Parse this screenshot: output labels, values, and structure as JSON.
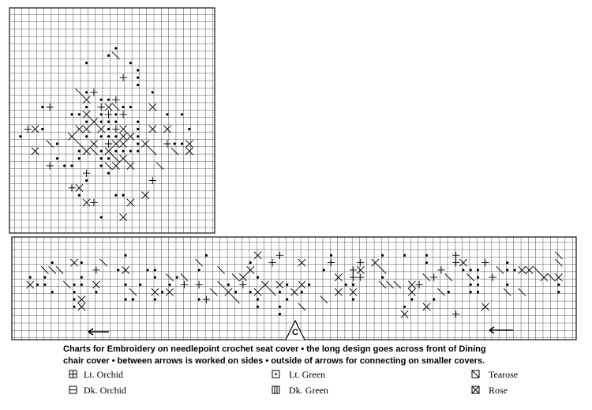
{
  "caption": {
    "lines": [
      "Charts for Embroidery on needlepoint crochet seat cover • the long design goes across front of Dining",
      "chair cover • between arrows is worked on sides • outside of arrows for connecting on smaller covers."
    ]
  },
  "chart_labels": {
    "center_mark": "C"
  },
  "legend": {
    "items": [
      {
        "label": "Lt. Orchid"
      },
      {
        "label": "Dk. Orchid"
      },
      {
        "label": "Lt. Green"
      },
      {
        "label": "Dk. Green"
      },
      {
        "label": "Tearose"
      },
      {
        "label": "Rose"
      }
    ]
  }
}
